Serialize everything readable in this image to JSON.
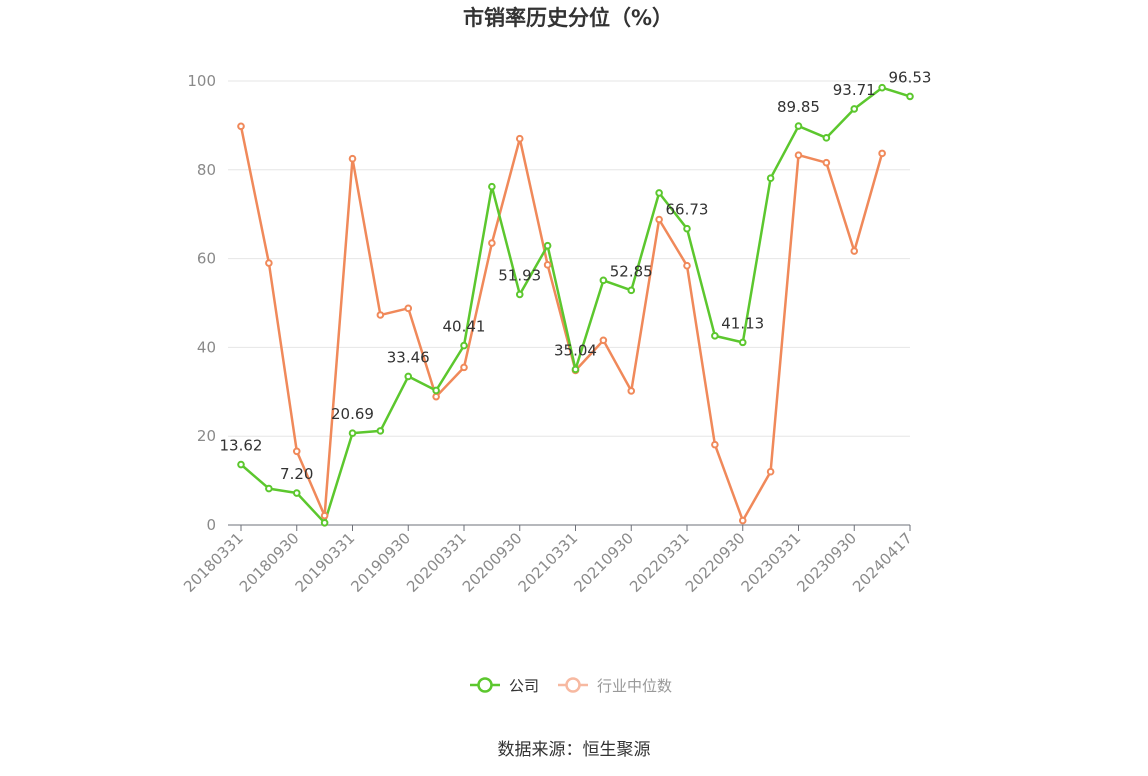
{
  "title": "市销率历史分位（%）",
  "source": "数据来源：恒生聚源",
  "colors": {
    "company": "#5cc72e",
    "industry": "#f0895a",
    "industry_legend": "#f7b9a1"
  },
  "legend": [
    {
      "name": "公司",
      "color": "#5cc72e",
      "active": true
    },
    {
      "name": "行业中位数",
      "color": "#f7b9a1",
      "active": false
    }
  ],
  "chart_data": {
    "type": "line",
    "title": "市销率历史分位（%）",
    "x_tick_labels": [
      "20180331",
      "20180930",
      "20190331",
      "20190930",
      "20200331",
      "20200930",
      "20210331",
      "20210930",
      "20220331",
      "20220930",
      "20230331",
      "20230930",
      "20240417"
    ],
    "ylim": [
      0,
      100
    ],
    "y_ticks": [
      0,
      20,
      40,
      60,
      80,
      100
    ],
    "grid": true,
    "legend_position": "bottom-center",
    "series": [
      {
        "name": "公司",
        "color": "#5cc72e",
        "values": [
          13.62,
          8.2,
          7.2,
          0.5,
          20.69,
          21.2,
          33.46,
          30.3,
          40.41,
          76.2,
          51.93,
          62.9,
          35.04,
          55.1,
          52.85,
          74.8,
          66.73,
          42.6,
          41.13,
          78.1,
          89.85,
          87.2,
          93.71,
          98.5,
          96.53
        ],
        "labels": {
          "0": "13.62",
          "2": "7.20",
          "4": "20.69",
          "6": "33.46",
          "8": "40.41",
          "10": "51.93",
          "12": "35.04",
          "14": "52.85",
          "16": "66.73",
          "18": "41.13",
          "20": "89.85",
          "22": "93.71",
          "24": "96.53"
        }
      },
      {
        "name": "行业中位数",
        "color": "#f0895a",
        "values": [
          89.8,
          59.0,
          16.6,
          2.1,
          82.5,
          47.3,
          48.8,
          28.9,
          35.5,
          63.5,
          87.0,
          58.6,
          34.8,
          41.6,
          30.2,
          68.8,
          58.4,
          18.1,
          1.0,
          12.0,
          83.3,
          81.6,
          61.7,
          83.7,
          null
        ]
      }
    ]
  }
}
